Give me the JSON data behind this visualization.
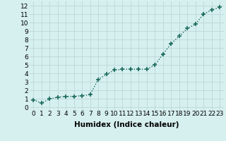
{
  "x": [
    0,
    1,
    2,
    3,
    4,
    5,
    6,
    7,
    8,
    9,
    10,
    11,
    12,
    13,
    14,
    15,
    16,
    17,
    18,
    19,
    20,
    21,
    22,
    23
  ],
  "y": [
    0.9,
    0.5,
    1.0,
    1.2,
    1.3,
    1.3,
    1.4,
    1.5,
    3.3,
    3.9,
    4.4,
    4.5,
    4.5,
    4.5,
    4.5,
    5.0,
    6.3,
    7.5,
    8.4,
    9.3,
    9.8,
    11.0,
    11.5,
    11.8
  ],
  "line_color": "#1a6b5a",
  "marker": "+",
  "marker_size": 4,
  "bg_color": "#d6efef",
  "grid_color": "#c0dada",
  "xlabel": "Humidex (Indice chaleur)",
  "xlabel_fontsize": 7.5,
  "tick_fontsize": 6.5,
  "xlim": [
    -0.5,
    23.5
  ],
  "ylim": [
    -0.3,
    12.5
  ],
  "yticks": [
    0,
    1,
    2,
    3,
    4,
    5,
    6,
    7,
    8,
    9,
    10,
    11,
    12
  ],
  "xticks": [
    0,
    1,
    2,
    3,
    4,
    5,
    6,
    7,
    8,
    9,
    10,
    11,
    12,
    13,
    14,
    15,
    16,
    17,
    18,
    19,
    20,
    21,
    22,
    23
  ]
}
